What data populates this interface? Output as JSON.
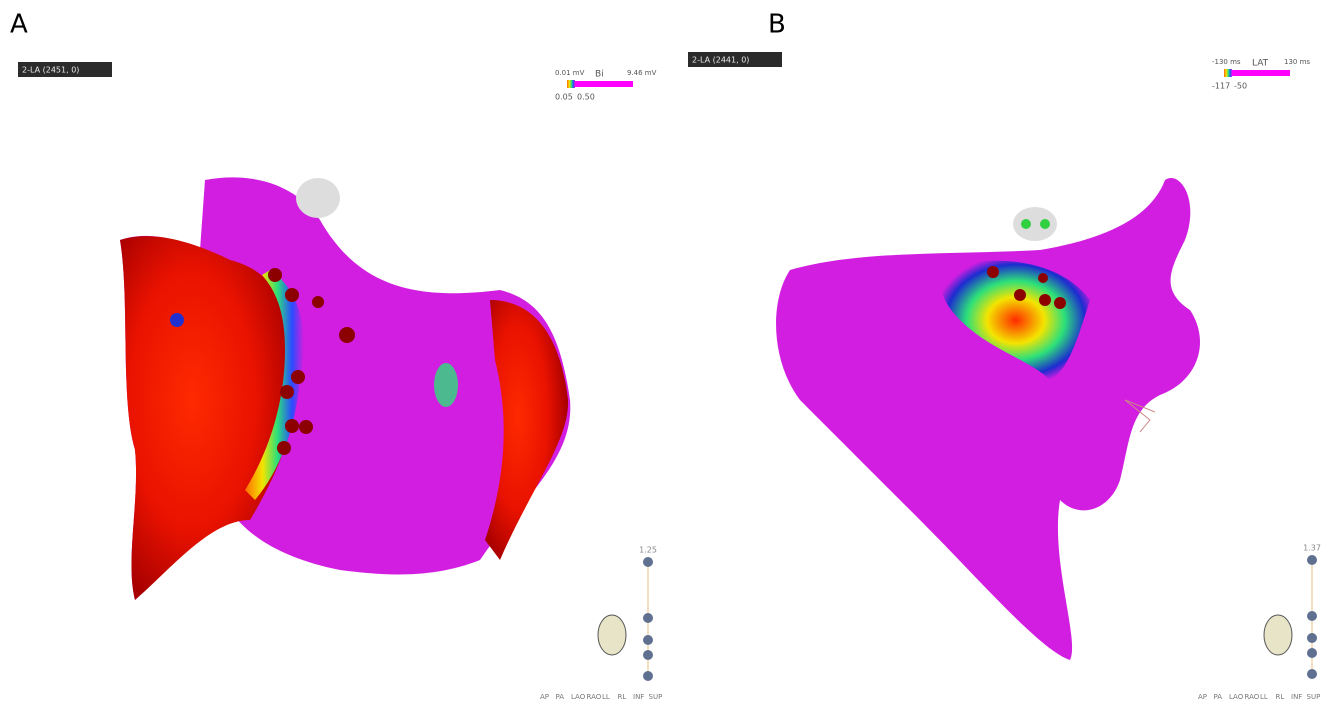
{
  "panels": [
    {
      "label": "A",
      "dropdown": "2-LA (2451, 0)",
      "scale": {
        "min": "0.01 mV",
        "name": "Bi",
        "max": "9.46 mV",
        "low": "0.05",
        "high": "0.50"
      },
      "zoom": "1.25",
      "views": [
        "AP",
        "PA",
        "LAO",
        "RAO",
        "LL",
        "RL",
        "INF",
        "SUP"
      ]
    },
    {
      "label": "B",
      "dropdown": "2-LA (2441, 0)",
      "scale": {
        "min": "-130 ms",
        "name": "LAT",
        "max": "130 ms",
        "low": "-117",
        "high": "-50"
      },
      "zoom": "1.37",
      "views": [
        "AP",
        "PA",
        "LAO",
        "RAO",
        "LL",
        "RL",
        "INF",
        "SUP"
      ]
    }
  ]
}
